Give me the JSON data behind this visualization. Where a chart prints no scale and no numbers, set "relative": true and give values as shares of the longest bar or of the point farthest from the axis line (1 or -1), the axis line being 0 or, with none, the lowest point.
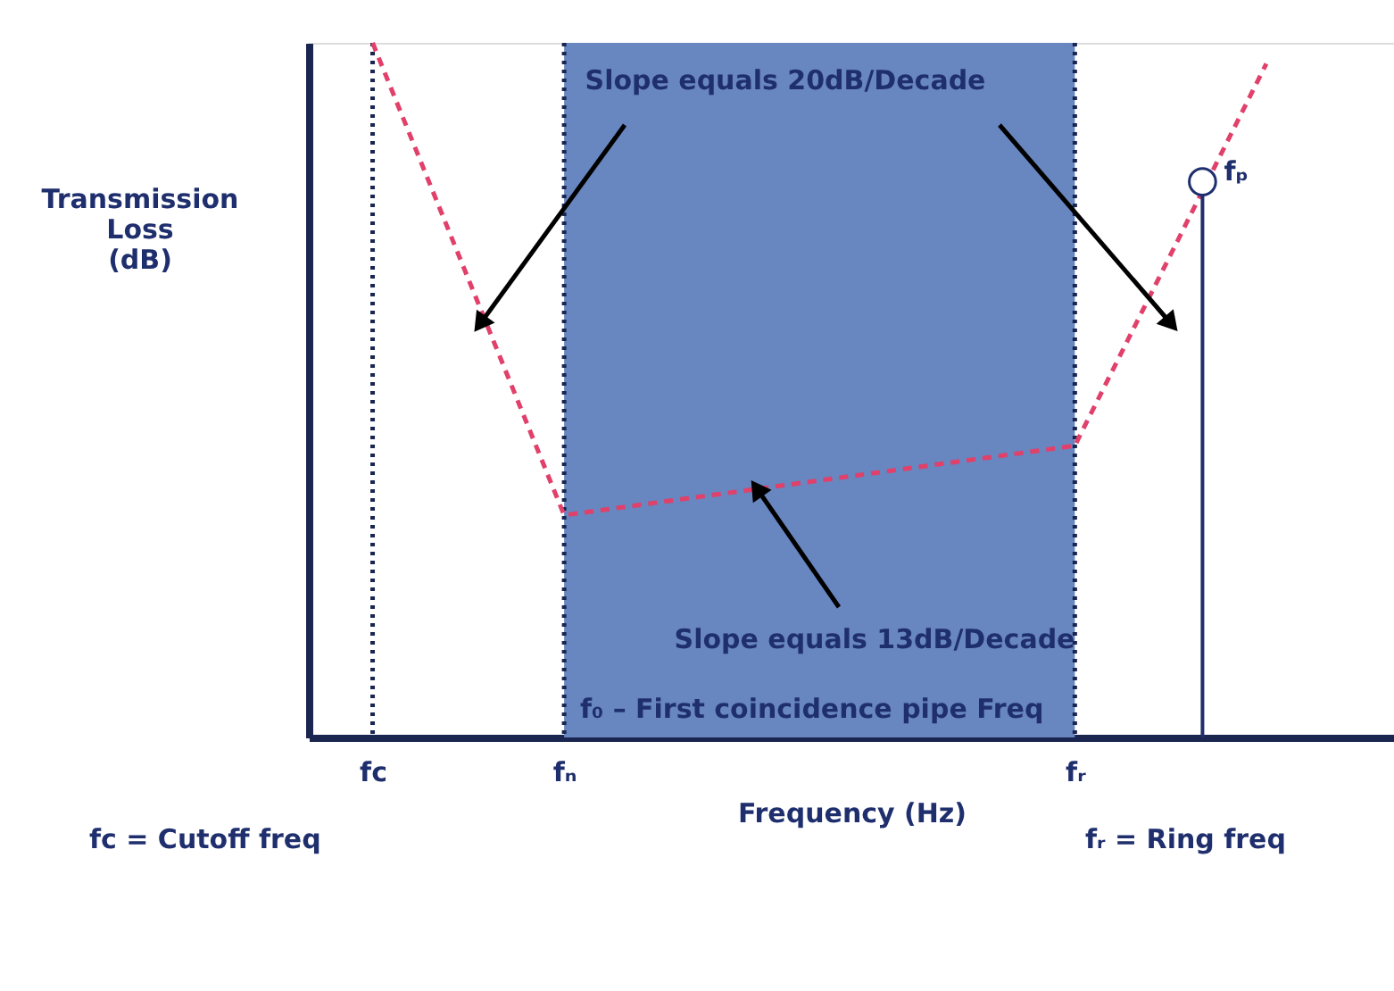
{
  "chart_data": {
    "type": "line",
    "relative": true,
    "categories": [
      null,
      "fc",
      null,
      null,
      "fₙ",
      null,
      null,
      null,
      null,
      null,
      null,
      null,
      "fᵣ",
      null,
      null,
      null,
      null,
      null
    ],
    "xlabel": "Frequency (Hz)",
    "ylabel": "Transmission Loss (dB)",
    "grid": false,
    "legend": false,
    "series": [
      {
        "type": "line",
        "color": "#e0406a",
        "line_style": "dashed",
        "marker": "none",
        "values": [
          null,
          1,
          null,
          null,
          0.32,
          null,
          null,
          null,
          null,
          null,
          null,
          null,
          0.42,
          null,
          null,
          0.97,
          null,
          null
        ]
      },
      {
        "type": "lollipop",
        "name": "fₚ",
        "color": "#ffffff",
        "values": [
          null,
          null,
          null,
          null,
          null,
          null,
          null,
          null,
          null,
          null,
          null,
          null,
          null,
          null,
          0.8,
          null,
          null,
          null
        ]
      }
    ],
    "ref_lines": [
      {
        "axis": "x",
        "value": "fc",
        "color": "#1a2550",
        "line_style": "dotted"
      },
      {
        "axis": "x",
        "value": "fₙ",
        "color": "#1a2550",
        "line_style": "dotted"
      },
      {
        "axis": "x",
        "value": "fᵣ",
        "color": "#1a2550",
        "line_style": "dotted"
      }
    ],
    "bands": [
      {
        "axis": "x",
        "from": "fₙ",
        "to": "fᵣ",
        "color": "#6886bf"
      }
    ],
    "annotations": [
      "Slope equals 20dB/Decade",
      "Slope equals 13dB/Decade",
      "f₀ – First coincidence pipe Freq",
      "fc = Cutoff freq",
      "fᵣ = Ring freq"
    ]
  }
}
